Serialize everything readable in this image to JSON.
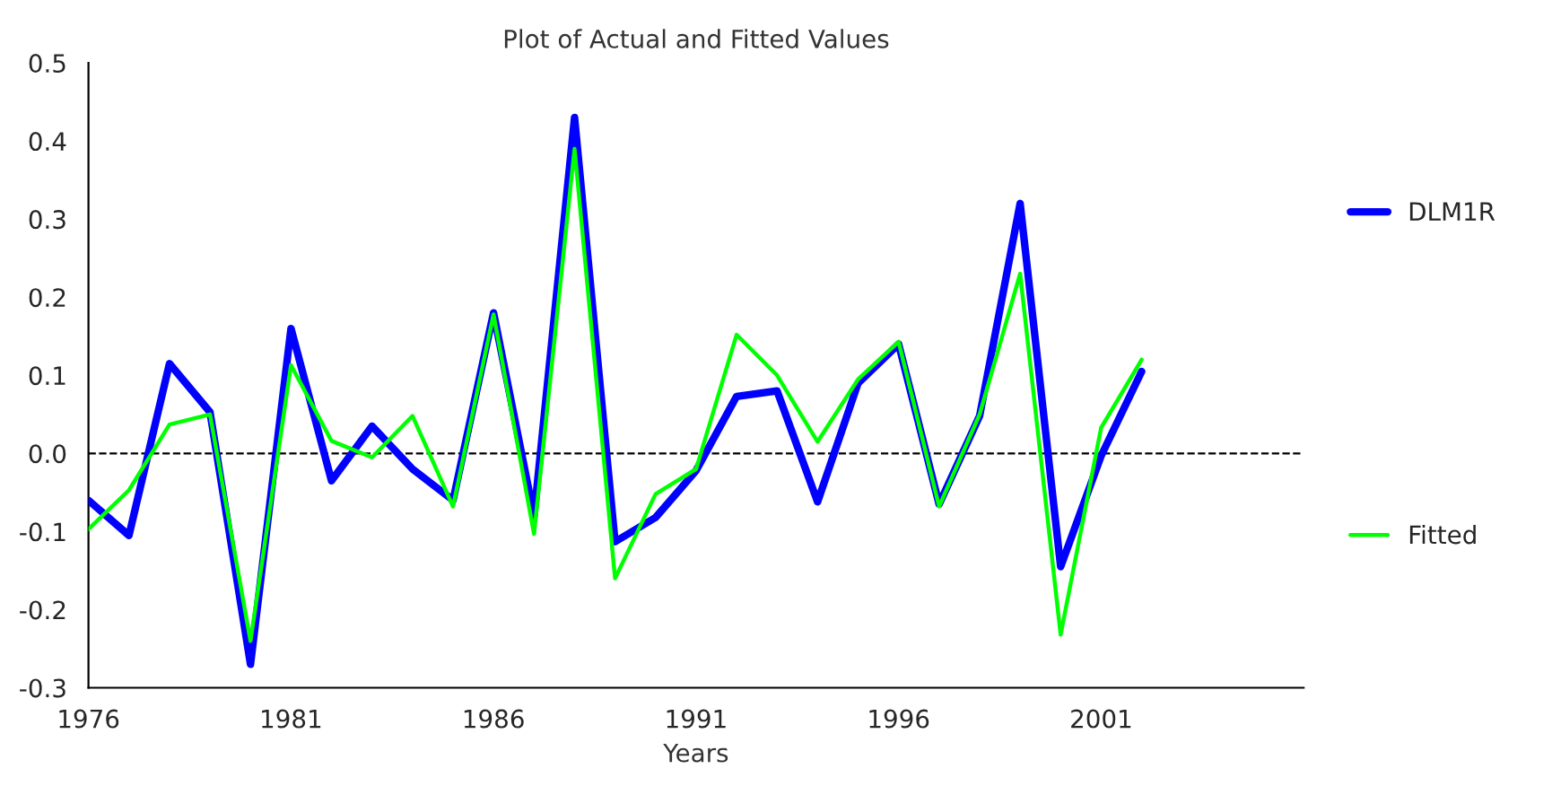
{
  "chart_data": {
    "type": "line",
    "title": "Plot of Actual and Fitted Values",
    "xlabel": "Years",
    "x": [
      1976,
      1977,
      1978,
      1979,
      1980,
      1981,
      1982,
      1983,
      1984,
      1985,
      1986,
      1987,
      1988,
      1989,
      1990,
      1991,
      1992,
      1993,
      1994,
      1995,
      1996,
      1997,
      1998,
      1999,
      2000,
      2001,
      2002
    ],
    "series": [
      {
        "name": "DLM1R",
        "color": "#0000ff",
        "values": [
          -0.06,
          -0.105,
          0.115,
          0.053,
          -0.27,
          0.16,
          -0.035,
          0.035,
          -0.02,
          -0.06,
          0.18,
          -0.08,
          0.43,
          -0.113,
          -0.082,
          -0.022,
          0.073,
          0.08,
          -0.062,
          0.09,
          0.14,
          -0.065,
          0.048,
          0.32,
          -0.145,
          -0.003,
          0.105
        ]
      },
      {
        "name": "Fitted",
        "color": "#00ff00",
        "values": [
          -0.097,
          -0.047,
          0.037,
          0.05,
          -0.24,
          0.113,
          0.016,
          -0.005,
          0.048,
          -0.068,
          0.178,
          -0.103,
          0.39,
          -0.16,
          -0.052,
          -0.02,
          0.152,
          0.1,
          0.015,
          0.095,
          0.143,
          -0.068,
          0.05,
          0.23,
          -0.232,
          0.033,
          0.12
        ]
      }
    ],
    "xlim": [
      1976,
      2006
    ],
    "xticks": [
      1976,
      1981,
      1986,
      1991,
      1996,
      2001
    ],
    "ylim": [
      -0.3,
      0.5
    ],
    "yticks": [
      {
        "value": -0.3,
        "label": "-0.3"
      },
      {
        "value": -0.2,
        "label": "-0.2"
      },
      {
        "value": -0.1,
        "label": "-0.1"
      },
      {
        "value": 0.0,
        "label": "0.0"
      },
      {
        "value": 0.1,
        "label": "0.1"
      },
      {
        "value": 0.2,
        "label": "0.2"
      },
      {
        "value": 0.3,
        "label": "0.3"
      },
      {
        "value": 0.4,
        "label": "0.4"
      },
      {
        "value": 0.5,
        "label": "0.5"
      }
    ],
    "ref_lines": [
      {
        "axis": "y",
        "value": 0.0,
        "color": "#000000",
        "line_style": "dashed"
      }
    ],
    "grid": false,
    "legend": "right",
    "marker": "none",
    "line_style": "solid"
  }
}
